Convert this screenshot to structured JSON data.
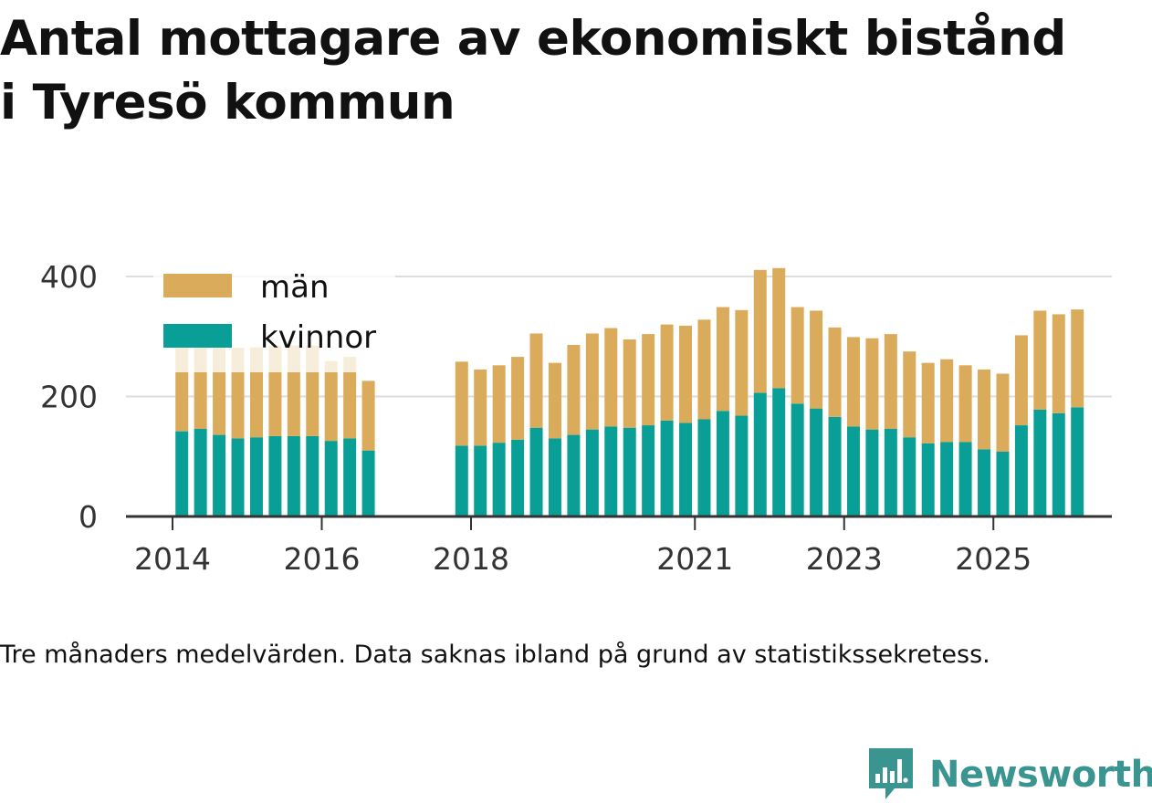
{
  "title_lines": [
    "Antal mottagare av ekonomiskt bistånd",
    "i Tyresö kommun"
  ],
  "caption": "Tre månaders medelvärden. Data saknas ibland på grund av statistikssekretess.",
  "brand": "Newsworthy",
  "colors": {
    "men": "#d9ab5a",
    "women": "#0a9f96",
    "axis": "#333333",
    "grid": "#dddddd",
    "brand": "#3a9490"
  },
  "chart_data": {
    "type": "bar",
    "stacked": true,
    "title": "Antal mottagare av ekonomiskt bistånd i Tyresö kommun",
    "x_start": 2014,
    "x_step": 0.25,
    "ylim": [
      0,
      400
    ],
    "yticks": [
      0,
      200,
      400
    ],
    "xticks": [
      2014,
      2016,
      2018,
      2021,
      2023,
      2025
    ],
    "legend": {
      "position": "top-left",
      "entries": [
        "män",
        "kvinnor"
      ]
    },
    "series": [
      {
        "name": "kvinnor",
        "color": "#0a9f96",
        "values": [
          142,
          146,
          136,
          130,
          132,
          134,
          134,
          134,
          126,
          130,
          110,
          null,
          null,
          null,
          null,
          118,
          118,
          123,
          128,
          148,
          130,
          136,
          145,
          150,
          148,
          152,
          160,
          156,
          162,
          176,
          168,
          206,
          214,
          188,
          180,
          166,
          150,
          145,
          146,
          132,
          122,
          124,
          124,
          112,
          108,
          152,
          178,
          172,
          182
        ]
      },
      {
        "name": "män",
        "color": "#d9ab5a",
        "values": [
          140,
          138,
          148,
          151,
          150,
          151,
          151,
          151,
          133,
          136,
          116,
          null,
          null,
          null,
          null,
          140,
          127,
          129,
          138,
          157,
          126,
          150,
          160,
          164,
          147,
          152,
          160,
          162,
          166,
          173,
          176,
          205,
          200,
          161,
          163,
          149,
          149,
          152,
          158,
          143,
          134,
          138,
          128,
          133,
          130,
          150,
          165,
          165,
          163
        ]
      }
    ]
  }
}
